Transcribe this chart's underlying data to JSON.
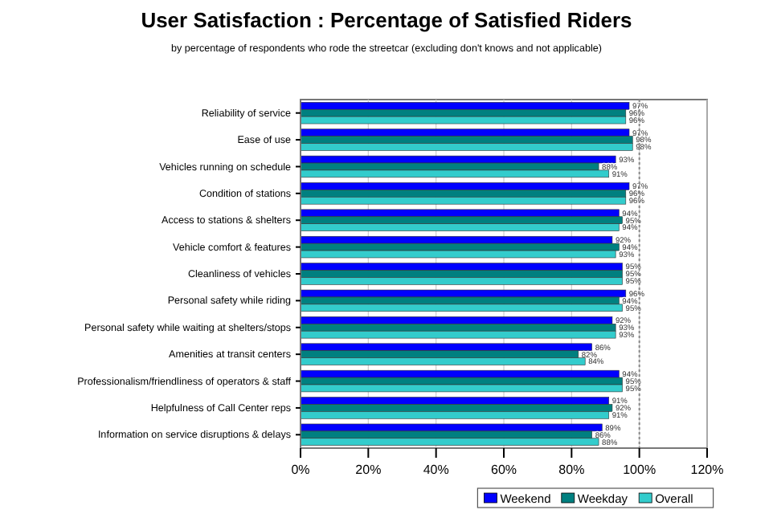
{
  "chart_data": {
    "type": "bar",
    "orientation": "horizontal",
    "title": "User Satisfaction : Percentage of Satisfied Riders",
    "subtitle": "by percentage of respondents who rode the streetcar (excluding don't knows and not applicable)",
    "categories": [
      "Reliability of service",
      "Ease of use",
      "Vehicles running on schedule",
      "Condition of stations",
      "Access to stations & shelters",
      "Vehicle comfort & features",
      "Cleanliness of vehicles",
      "Personal safety while riding",
      "Personal safety while waiting at shelters/stops",
      "Amenities at transit centers",
      "Professionalism/friendliness of operators & staff",
      "Helpfulness of Call Center reps",
      "Information on service disruptions & delays"
    ],
    "series": [
      {
        "name": "Weekend",
        "color": "#0000ff",
        "values": [
          97,
          97,
          93,
          97,
          94,
          92,
          95,
          96,
          92,
          86,
          94,
          91,
          89
        ],
        "value_labels": [
          "97%",
          "97%",
          "93%",
          "97%",
          "94%",
          "92%",
          "95%",
          "96%",
          "92%",
          "86%",
          "94%",
          "91%",
          "89%"
        ]
      },
      {
        "name": "Weekday",
        "color": "#008080",
        "values": [
          96,
          98,
          88,
          96,
          95,
          94,
          95,
          94,
          93,
          82,
          95,
          92,
          86
        ],
        "value_labels": [
          "96%",
          "98%",
          "88%",
          "96%",
          "95%",
          "94%",
          "95%",
          "94%",
          "93%",
          "82%",
          "95%",
          "92%",
          "86%"
        ]
      },
      {
        "name": "Overall",
        "color": "#33cccc",
        "values": [
          96,
          98,
          91,
          96,
          94,
          93,
          95,
          95,
          93,
          84,
          95,
          91,
          88
        ],
        "value_labels": [
          "96%",
          "98%",
          "91%",
          "96%",
          "94%",
          "93%",
          "95%",
          "95%",
          "93%",
          "84%",
          "95%",
          "91%",
          "88%"
        ]
      }
    ],
    "xlim": [
      0,
      120
    ],
    "xticks": [
      {
        "value": 0,
        "label": "0%"
      },
      {
        "value": 20,
        "label": "20%"
      },
      {
        "value": 40,
        "label": "40%"
      },
      {
        "value": 60,
        "label": "60%"
      },
      {
        "value": 80,
        "label": "80%"
      },
      {
        "value": 100,
        "label": "100%"
      },
      {
        "value": 120,
        "label": "120%"
      }
    ],
    "ref_lines": [
      {
        "axis": "x",
        "value": 100,
        "label": null,
        "line_style": "dotted",
        "color": "#888888"
      }
    ],
    "grid": "x",
    "legend": "bottom"
  }
}
